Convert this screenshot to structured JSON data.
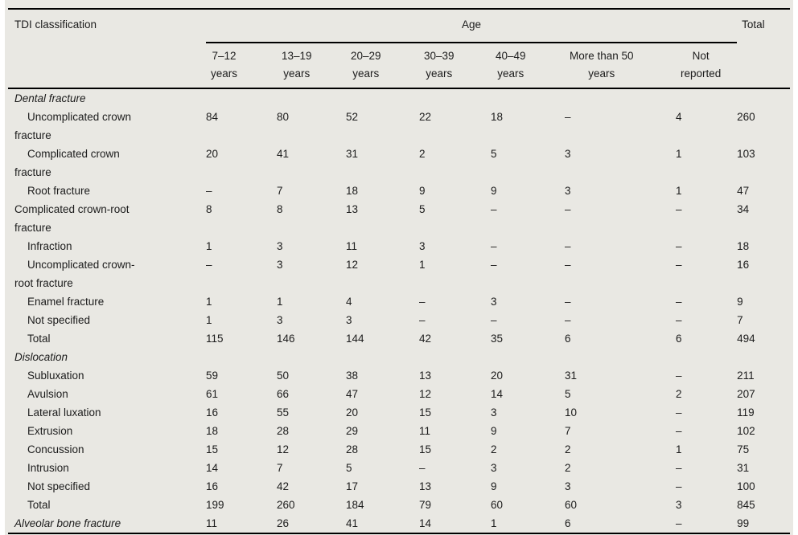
{
  "table": {
    "header": {
      "col1": "TDI classification",
      "age": "Age",
      "total": "Total",
      "age_cols": [
        {
          "line1": "7–12",
          "line2": "years"
        },
        {
          "line1": "13–19",
          "line2": "years"
        },
        {
          "line1": "20–29",
          "line2": "years"
        },
        {
          "line1": "30–39",
          "line2": "years"
        },
        {
          "line1": "40–49",
          "line2": "years"
        },
        {
          "line1": "More than 50",
          "line2": "years"
        },
        {
          "line1": "Not",
          "line2": "reported"
        }
      ]
    },
    "rows": [
      {
        "label": "Dental fracture",
        "type": "section",
        "values": [
          "",
          "",
          "",
          "",
          "",
          "",
          "",
          ""
        ]
      },
      {
        "label": "Uncomplicated crown\nfracture",
        "type": "indent",
        "values": [
          "84",
          "80",
          "52",
          "22",
          "18",
          "–",
          "4",
          "260"
        ]
      },
      {
        "label": "Complicated crown\nfracture",
        "type": "indent",
        "values": [
          "20",
          "41",
          "31",
          "2",
          "5",
          "3",
          "1",
          "103"
        ]
      },
      {
        "label": "Root fracture",
        "type": "indent",
        "values": [
          "–",
          "7",
          "18",
          "9",
          "9",
          "3",
          "1",
          "47"
        ]
      },
      {
        "label": "Complicated crown-root\nfracture",
        "type": "plain",
        "values": [
          "8",
          "8",
          "13",
          "5",
          "–",
          "–",
          "–",
          "34"
        ]
      },
      {
        "label": "Infraction",
        "type": "indent",
        "values": [
          "1",
          "3",
          "11",
          "3",
          "–",
          "–",
          "–",
          "18"
        ]
      },
      {
        "label": "Uncomplicated crown-\nroot fracture",
        "type": "indent",
        "values": [
          "–",
          "3",
          "12",
          "1",
          "–",
          "–",
          "–",
          "16"
        ]
      },
      {
        "label": "Enamel fracture",
        "type": "indent",
        "values": [
          "1",
          "1",
          "4",
          "–",
          "3",
          "–",
          "–",
          "9"
        ]
      },
      {
        "label": "Not specified",
        "type": "indent",
        "values": [
          "1",
          "3",
          "3",
          "–",
          "–",
          "–",
          "–",
          "7"
        ]
      },
      {
        "label": "Total",
        "type": "indent",
        "values": [
          "115",
          "146",
          "144",
          "42",
          "35",
          "6",
          "6",
          "494"
        ]
      },
      {
        "label": "Dislocation",
        "type": "section",
        "values": [
          "",
          "",
          "",
          "",
          "",
          "",
          "",
          ""
        ]
      },
      {
        "label": "Subluxation",
        "type": "indent",
        "values": [
          "59",
          "50",
          "38",
          "13",
          "20",
          "31",
          "–",
          "211"
        ]
      },
      {
        "label": "Avulsion",
        "type": "indent",
        "values": [
          "61",
          "66",
          "47",
          "12",
          "14",
          "5",
          "2",
          "207"
        ]
      },
      {
        "label": "Lateral luxation",
        "type": "indent",
        "values": [
          "16",
          "55",
          "20",
          "15",
          "3",
          "10",
          "–",
          "119"
        ]
      },
      {
        "label": "Extrusion",
        "type": "indent",
        "values": [
          "18",
          "28",
          "29",
          "11",
          "9",
          "7",
          "–",
          "102"
        ]
      },
      {
        "label": "Concussion",
        "type": "indent",
        "values": [
          "15",
          "12",
          "28",
          "15",
          "2",
          "2",
          "1",
          "75"
        ]
      },
      {
        "label": "Intrusion",
        "type": "indent",
        "values": [
          "14",
          "7",
          "5",
          "–",
          "3",
          "2",
          "–",
          "31"
        ]
      },
      {
        "label": "Not specified",
        "type": "indent",
        "values": [
          "16",
          "42",
          "17",
          "13",
          "9",
          "3",
          "–",
          "100"
        ]
      },
      {
        "label": "Total",
        "type": "indent",
        "values": [
          "199",
          "260",
          "184",
          "79",
          "60",
          "60",
          "3",
          "845"
        ]
      },
      {
        "label": "Alveolar bone fracture",
        "type": "section-data",
        "values": [
          "11",
          "26",
          "41",
          "14",
          "1",
          "6",
          "–",
          "99"
        ]
      }
    ]
  }
}
